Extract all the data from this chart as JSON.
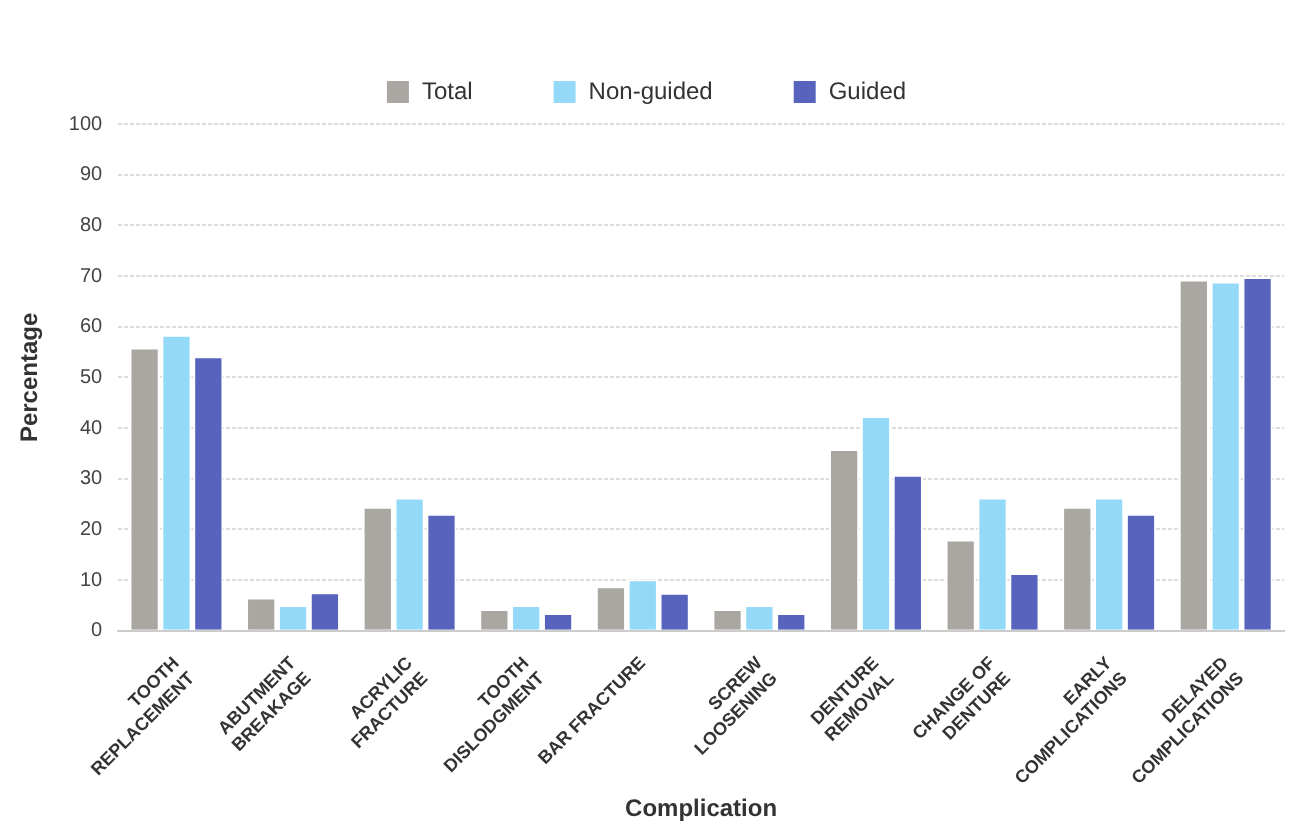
{
  "chart_data": {
    "type": "bar",
    "xlabel": "Complication",
    "ylabel": "Percentage",
    "categories": [
      "TOOTH REPLACEMENT",
      "ABUTMENT BREAKAGE",
      "ACRYLIC FRACTURE",
      "TOOTH DISLODGMENT",
      "BAR FRACTURE",
      "SCREW LOOSENING",
      "DENTURE REMOVAL",
      "CHANGE OF DENTURE",
      "EARLY COMPLICATIONS",
      "DELAYED COMPLICATIONS"
    ],
    "series": [
      {
        "name": "Total",
        "color": "#aaa7a2",
        "values": [
          55.9,
          6.6,
          24.5,
          4.3,
          8.8,
          4.3,
          35.9,
          18,
          24.5,
          69.3
        ]
      },
      {
        "name": "Non-guided",
        "color": "#95d9f9",
        "values": [
          58.4,
          5.1,
          26.3,
          5.1,
          10.2,
          5.1,
          42.4,
          26.3,
          26.3,
          68.9
        ]
      },
      {
        "name": "Guided",
        "color": "#5763bd",
        "values": [
          54.2,
          7.6,
          23.1,
          3.5,
          7.5,
          3.5,
          30.8,
          11.4,
          23.1,
          69.8
        ]
      }
    ],
    "ylim": [
      0,
      100
    ],
    "yticks": [
      0,
      10,
      20,
      30,
      40,
      50,
      60,
      70,
      80,
      90,
      100
    ],
    "grid": "y",
    "legend": "top"
  }
}
